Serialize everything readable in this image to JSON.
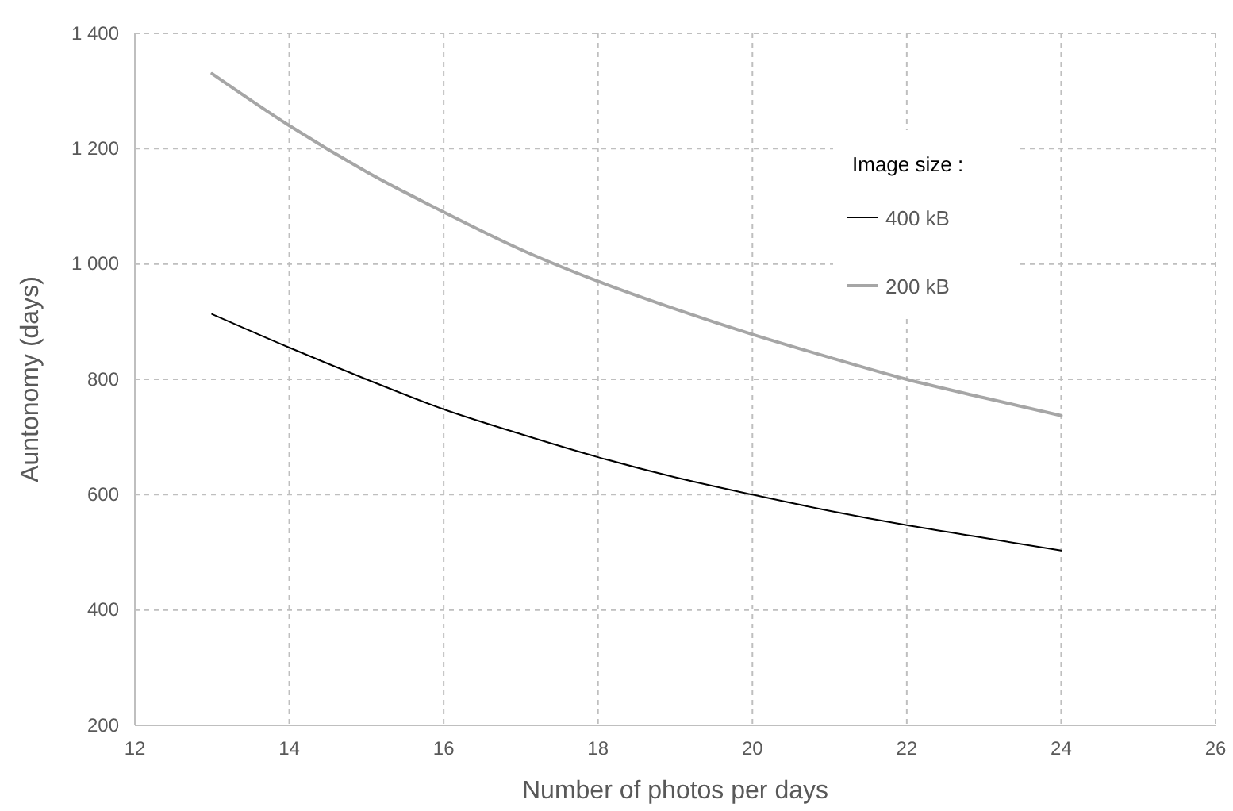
{
  "chart_data": {
    "type": "line",
    "xlabel": "Number of photos per days",
    "ylabel": "Auntonomy (days)",
    "legend_title": "Image size :",
    "legend": "top right",
    "grid": true,
    "line_style": "solid",
    "xlim": [
      12,
      26
    ],
    "xticks": [
      12,
      14,
      16,
      18,
      20,
      22,
      24,
      26
    ],
    "ylim": [
      200,
      1400
    ],
    "yticks": [
      {
        "value": 200,
        "label": "200"
      },
      {
        "value": 400,
        "label": "400"
      },
      {
        "value": 600,
        "label": "600"
      },
      {
        "value": 800,
        "label": "800"
      },
      {
        "value": 1000,
        "label": "1 000"
      },
      {
        "value": 1200,
        "label": "1 200"
      },
      {
        "value": 1400,
        "label": "1 400"
      }
    ],
    "x": [
      13,
      14,
      15,
      16,
      17,
      18,
      19,
      20,
      21,
      22,
      23,
      24
    ],
    "series": [
      {
        "name": "400 kB",
        "color": "#000000",
        "values": [
          913,
          855,
          800,
          748,
          705,
          665,
          630,
          600,
          572,
          547,
          525,
          503
        ]
      },
      {
        "name": "200 kB",
        "color": "#a6a6a6",
        "values": [
          1330,
          1240,
          1160,
          1090,
          1025,
          970,
          922,
          878,
          838,
          800,
          768,
          737
        ]
      }
    ]
  }
}
